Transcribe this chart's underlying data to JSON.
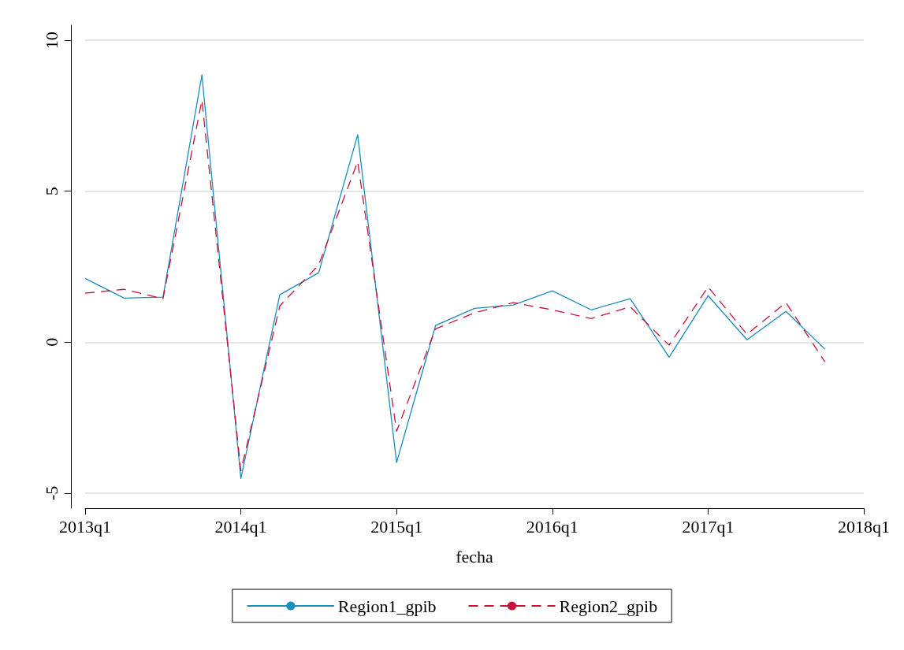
{
  "chart_data": {
    "type": "line",
    "xlabel": "fecha",
    "categories": [
      "2013q1",
      null,
      null,
      null,
      "2014q1",
      null,
      null,
      null,
      "2015q1",
      null,
      null,
      null,
      "2016q1",
      null,
      null,
      null,
      "2017q1",
      null,
      null,
      null,
      "2018q1"
    ],
    "series": [
      {
        "name": "Region1_gpib",
        "color": "#1a8cbe",
        "line_style": "solid",
        "values": [
          2.11,
          1.46,
          1.49,
          8.85,
          -4.52,
          1.57,
          2.3,
          6.87,
          -3.99,
          0.55,
          1.12,
          1.23,
          1.7,
          1.07,
          1.44,
          -0.5,
          1.54,
          0.08,
          1.02,
          -0.23,
          null
        ]
      },
      {
        "name": "Region2_gpib",
        "color": "#c8103c",
        "line_style": "dashed",
        "values": [
          1.62,
          1.75,
          1.44,
          8.02,
          -4.26,
          1.2,
          2.56,
          5.98,
          -2.95,
          0.44,
          0.97,
          1.31,
          1.07,
          0.78,
          1.17,
          -0.1,
          1.83,
          0.26,
          1.31,
          -0.65,
          null
        ]
      }
    ],
    "ylim": [
      -5.5,
      10.5
    ],
    "yticks": [
      -5,
      0,
      5,
      10
    ],
    "grid": "y",
    "legend": "bottom",
    "marker": "none"
  }
}
